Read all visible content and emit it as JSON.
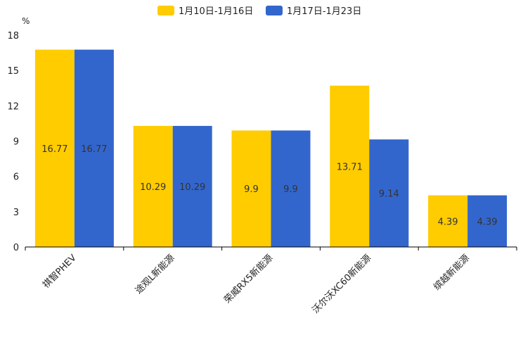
{
  "chart_data": {
    "type": "bar",
    "ylabel": "%",
    "ylim": [
      0,
      18
    ],
    "yticks": [
      0,
      3,
      6,
      9,
      12,
      15,
      18
    ],
    "categories": [
      "祺智PHEV",
      "途观L新能源",
      "荣威RX5新能源",
      "沃尔沃XC60新能源",
      "缤越新能源"
    ],
    "series": [
      {
        "name": "1月10日-1月16日",
        "color": "#FFCC00",
        "values": [
          16.77,
          10.29,
          9.9,
          13.71,
          4.39
        ]
      },
      {
        "name": "1月17日-1月23日",
        "color": "#3366CC",
        "values": [
          16.77,
          10.29,
          9.9,
          9.14,
          4.39
        ]
      }
    ],
    "legend_position": "top-center",
    "grid": false
  }
}
